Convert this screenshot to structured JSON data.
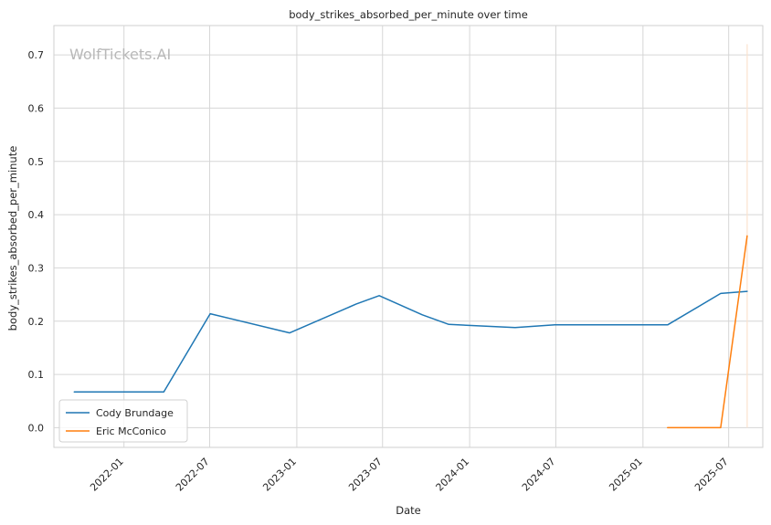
{
  "chart_data": {
    "type": "line",
    "title": "body_strikes_absorbed_per_minute over time",
    "xlabel": "Date",
    "ylabel": "body_strikes_absorbed_per_minute",
    "watermark": "WolfTickets.AI",
    "grid": true,
    "legend_position": "bottom-left",
    "xlim": [
      "2021-08-06",
      "2025-09-11"
    ],
    "ylim": [
      -0.037,
      0.755
    ],
    "x_ticks": [
      "2022-01",
      "2022-07",
      "2023-01",
      "2023-07",
      "2024-01",
      "2024-07",
      "2025-01",
      "2025-07"
    ],
    "y_ticks": [
      0.0,
      0.1,
      0.2,
      0.3,
      0.4,
      0.5,
      0.6,
      0.7
    ],
    "series": [
      {
        "name": "Cody Brundage",
        "color": "#1f77b4",
        "x": [
          "2021-09-18",
          "2022-03-26",
          "2022-07-02",
          "2022-12-17",
          "2023-05-06",
          "2023-06-24",
          "2023-09-23",
          "2023-11-18",
          "2024-04-06",
          "2024-06-29",
          "2025-02-22",
          "2025-06-14",
          "2025-08-09"
        ],
        "y": [
          0.067,
          0.067,
          0.214,
          0.178,
          0.232,
          0.248,
          0.212,
          0.194,
          0.188,
          0.193,
          0.193,
          0.252,
          0.256
        ]
      },
      {
        "name": "Eric McConico",
        "color": "#ff7f0e",
        "x": [
          "2025-02-22",
          "2025-06-14",
          "2025-08-09"
        ],
        "y": [
          0.0,
          0.0,
          0.36
        ]
      }
    ],
    "annotations": [
      {
        "type": "vertical-line",
        "x": "2025-08-09",
        "y_range": [
          0.0,
          0.72
        ],
        "color": "#fbe3cf"
      }
    ]
  }
}
